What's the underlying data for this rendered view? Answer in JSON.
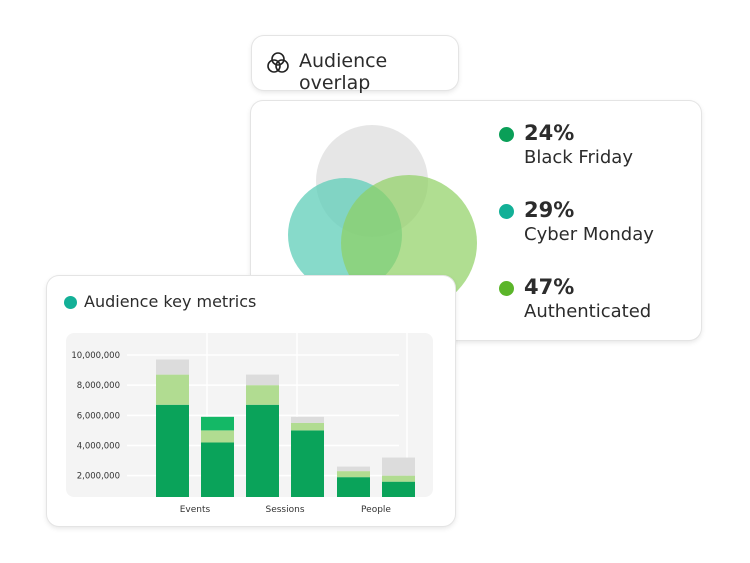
{
  "header": {
    "icon": "venn-overlap-icon",
    "label": "Audience overlap"
  },
  "overlap": {
    "legend": [
      {
        "percent": "24%",
        "name": "Black Friday",
        "color": "#0a9f58"
      },
      {
        "percent": "29%",
        "name": "Cyber Monday",
        "color": "#13b097"
      },
      {
        "percent": "47%",
        "name": "Authenticated",
        "color": "#5bb52a"
      }
    ],
    "circle_colors": {
      "top": "#dddddd",
      "left": "#5fcdb8",
      "right": "#8fd063"
    }
  },
  "metrics": {
    "title": "Audience key metrics",
    "dot_color": "#13b097"
  },
  "chart_data": {
    "type": "bar",
    "stacked": true,
    "categories": [
      "Events",
      "Sessions",
      "People"
    ],
    "ylim": [
      500000,
      10500000
    ],
    "yticks": [
      "2,000,000",
      "4,000,000",
      "6,000,000",
      "8,000,000",
      "10,000,000"
    ],
    "ytick_values": [
      2000000,
      4000000,
      6000000,
      8000000,
      10000000
    ],
    "grid": true,
    "colors": {
      "dark": "#0aa35a",
      "light": "#b1dc91",
      "bright": "#14b866",
      "gray": "#dcdcdc"
    },
    "bars": [
      {
        "category": "Events",
        "segments": [
          {
            "color": "dark",
            "value": 6700000
          },
          {
            "color": "light",
            "value": 2000000
          },
          {
            "color": "gray",
            "value": 1000000
          }
        ]
      },
      {
        "category": "Events",
        "segments": [
          {
            "color": "dark",
            "value": 4200000
          },
          {
            "color": "light",
            "value": 800000
          },
          {
            "color": "bright",
            "value": 900000
          }
        ]
      },
      {
        "category": "Sessions",
        "segments": [
          {
            "color": "dark",
            "value": 6700000
          },
          {
            "color": "light",
            "value": 1300000
          },
          {
            "color": "gray",
            "value": 700000
          }
        ]
      },
      {
        "category": "Sessions",
        "segments": [
          {
            "color": "dark",
            "value": 5000000
          },
          {
            "color": "light",
            "value": 500000
          },
          {
            "color": "gray",
            "value": 400000
          }
        ]
      },
      {
        "category": "People",
        "segments": [
          {
            "color": "dark",
            "value": 1900000
          },
          {
            "color": "light",
            "value": 400000
          },
          {
            "color": "gray",
            "value": 300000
          }
        ]
      },
      {
        "category": "People",
        "segments": [
          {
            "color": "dark",
            "value": 1600000
          },
          {
            "color": "light",
            "value": 400000
          },
          {
            "color": "gray",
            "value": 1200000
          }
        ]
      }
    ]
  }
}
